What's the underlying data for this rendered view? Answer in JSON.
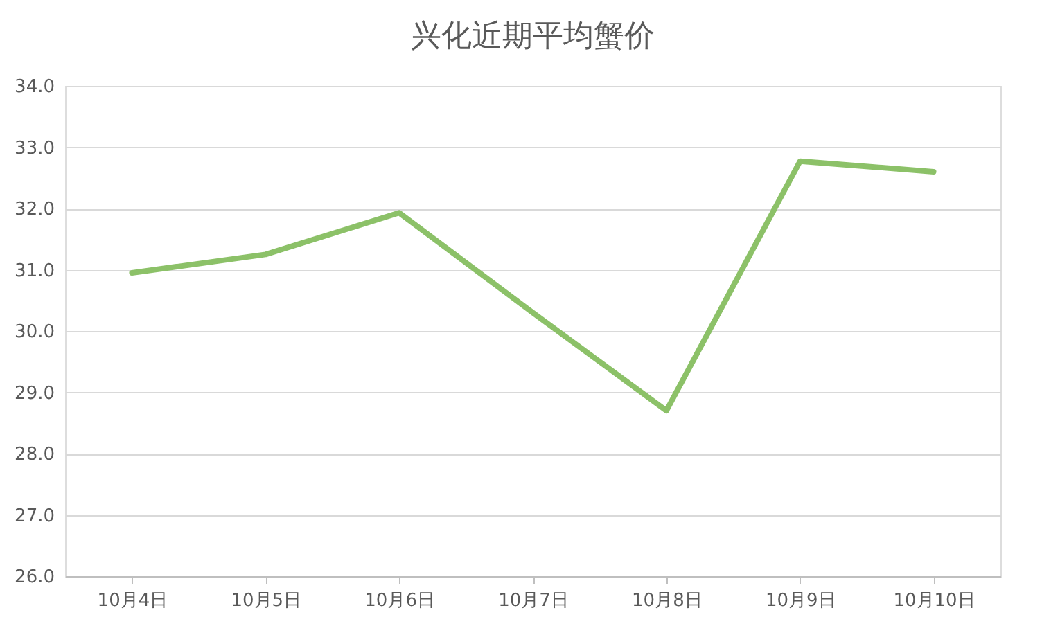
{
  "chart_data": {
    "type": "line",
    "title": "兴化近期平均蟹价",
    "categories": [
      "10月4日",
      "10月5日",
      "10月6日",
      "10月7日",
      "10月8日",
      "10月9日",
      "10月10日"
    ],
    "series": [
      {
        "color": "#8cc168",
        "values": [
          30.95,
          31.25,
          31.93,
          30.3,
          28.7,
          32.77,
          32.6
        ]
      }
    ],
    "ylim": [
      26,
      34
    ],
    "yticks": [
      {
        "value": 26,
        "label": "26.0"
      },
      {
        "value": 27,
        "label": "27.0"
      },
      {
        "value": 28,
        "label": "28.0"
      },
      {
        "value": 29,
        "label": "29.0"
      },
      {
        "value": 30,
        "label": "30.0"
      },
      {
        "value": 31,
        "label": "31.0"
      },
      {
        "value": 32,
        "label": "32.0"
      },
      {
        "value": 33,
        "label": "33.0"
      },
      {
        "value": 34,
        "label": "34.0"
      }
    ],
    "grid": "y",
    "marker": "none",
    "line_style": "solid"
  }
}
